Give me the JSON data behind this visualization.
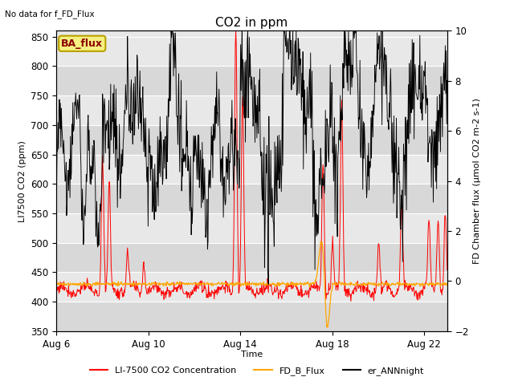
{
  "title": "CO2 in ppm",
  "top_left_text": "No data for f_FD_Flux",
  "box_label": "BA_flux",
  "xlabel": "Time",
  "ylabel_left": "LI7500 CO2 (ppm)",
  "ylabel_right": "FD Chamber flux (μmol CO2 m-2 s-1)",
  "ylim_left": [
    350,
    860
  ],
  "ylim_right": [
    -2,
    10
  ],
  "yticks_left": [
    350,
    400,
    450,
    500,
    550,
    600,
    650,
    700,
    750,
    800,
    850
  ],
  "yticks_right": [
    -2,
    0,
    2,
    4,
    6,
    8,
    10
  ],
  "xtick_labels": [
    "Aug 6",
    "Aug 10",
    "Aug 14",
    "Aug 18",
    "Aug 22"
  ],
  "xtick_positions": [
    0,
    4,
    8,
    12,
    16
  ],
  "legend_entries": [
    "LI-7500 CO2 Concentration",
    "FD_B_Flux",
    "er_ANNnight"
  ],
  "outer_bg": "#ffffff",
  "plot_bg": "#e8e8e8",
  "band_bg": "#d8d8d8",
  "grid_color": "#ffffff",
  "title_fontsize": 11,
  "label_fontsize": 8,
  "tick_fontsize": 8.5,
  "legend_fontsize": 8
}
